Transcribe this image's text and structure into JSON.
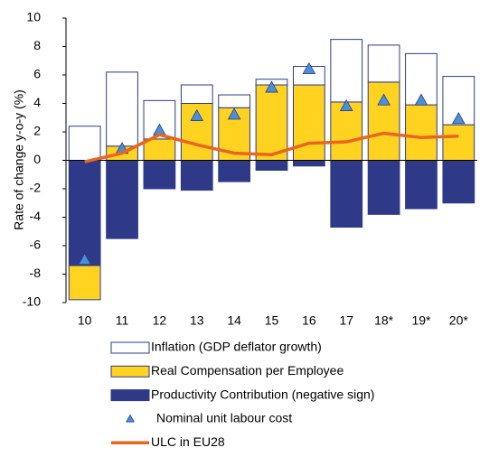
{
  "chart_data": {
    "type": "bar",
    "stacked": true,
    "y_label": "Rate of change y-o-y (%)",
    "categories": [
      "10",
      "11",
      "12",
      "13",
      "14",
      "15",
      "16",
      "17",
      "18*",
      "19*",
      "20*"
    ],
    "ylim": [
      -10,
      10
    ],
    "yticks": [
      -10,
      -8,
      -6,
      -4,
      -2,
      0,
      2,
      4,
      6,
      8,
      10
    ],
    "grid": false,
    "legend": "bottom",
    "series": [
      {
        "name": "Inflation (GDP deflator growth)",
        "type": "bar",
        "color": "#ffffff",
        "edge": "#2e3a87",
        "values": [
          2.4,
          5.2,
          2.7,
          1.3,
          0.9,
          0.4,
          1.3,
          4.4,
          2.6,
          3.6,
          3.4
        ]
      },
      {
        "name": "Real Compensation per Employee",
        "type": "bar",
        "color": "#ffd320",
        "edge": "#2e3a87",
        "values": [
          -2.4,
          1.0,
          1.5,
          4.0,
          3.7,
          5.3,
          5.3,
          4.1,
          5.5,
          3.9,
          2.5
        ]
      },
      {
        "name": "Productivity Contribution (negative sign)",
        "type": "bar",
        "color": "#2e3a87",
        "edge": "#2e3a87",
        "values": [
          -7.4,
          -5.5,
          -2.0,
          -2.1,
          -1.5,
          -0.7,
          -0.4,
          -4.7,
          -3.8,
          -3.4,
          -3.0
        ]
      },
      {
        "name": "Nominal unit labour cost",
        "type": "scatter",
        "color": "#4a90d9",
        "edge": "#2e3a87",
        "values": [
          -7.0,
          0.8,
          2.1,
          3.1,
          3.2,
          5.1,
          6.4,
          3.8,
          4.2,
          4.2,
          2.9
        ]
      },
      {
        "name": "ULC in EU28",
        "type": "line",
        "color": "#e8661f",
        "values": [
          -0.1,
          0.5,
          1.8,
          1.1,
          0.5,
          0.4,
          1.2,
          1.3,
          1.9,
          1.6,
          1.7
        ]
      }
    ]
  }
}
